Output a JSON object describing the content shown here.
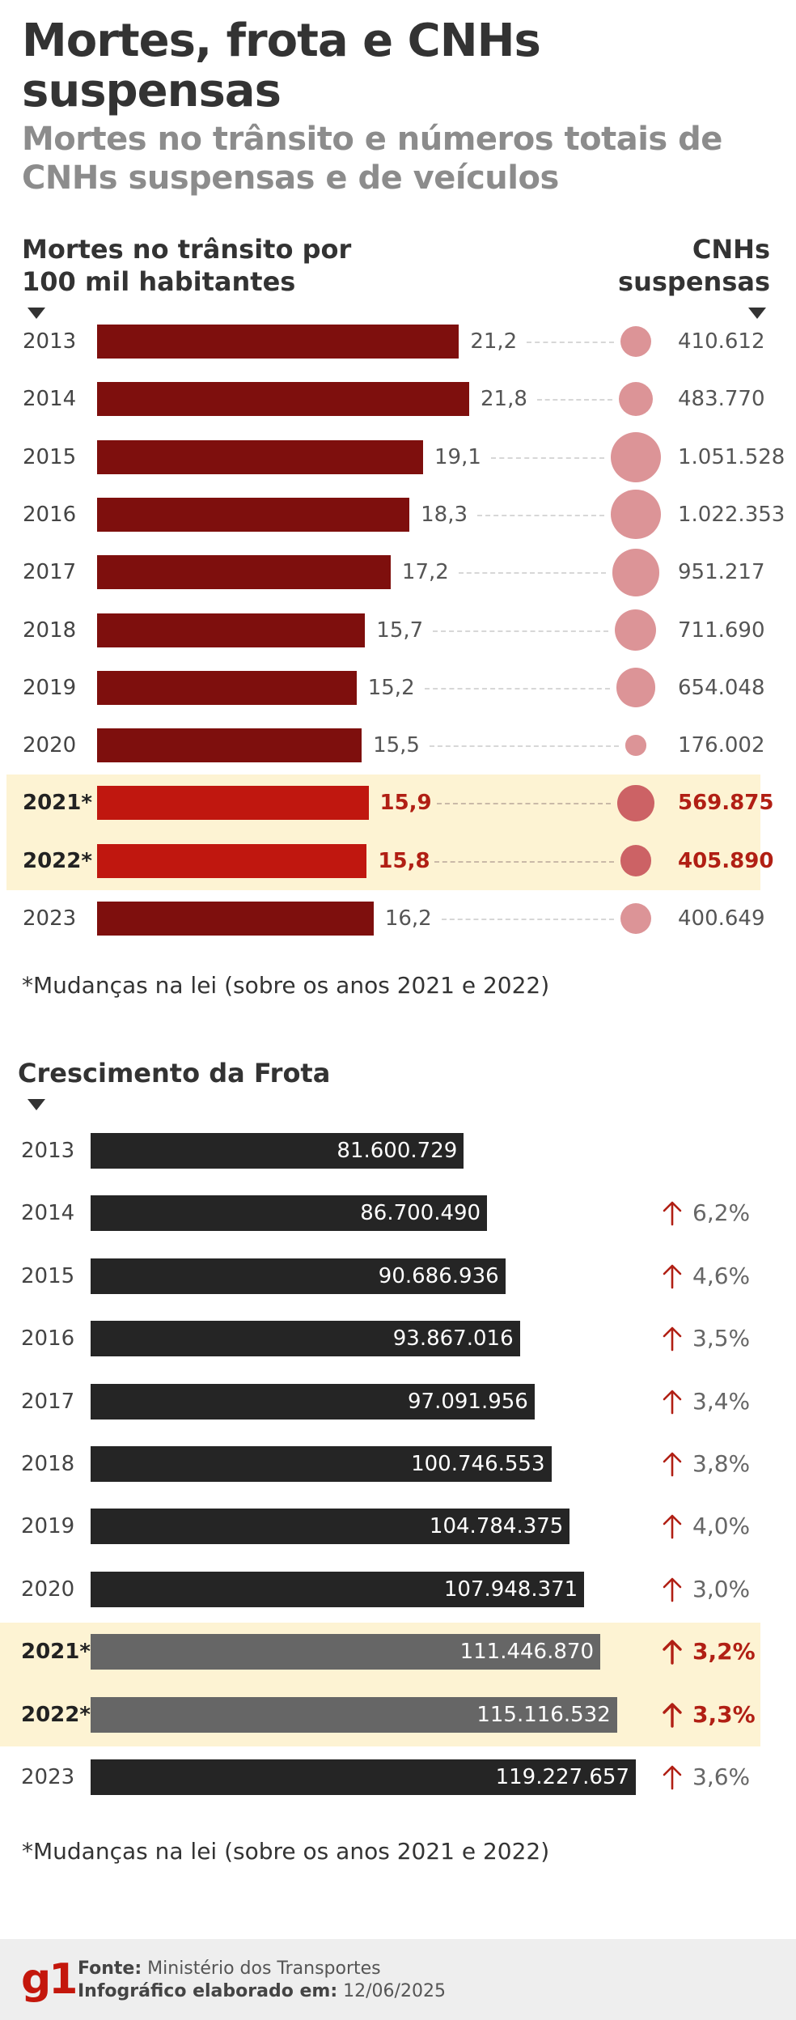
{
  "title": "Mortes, frota e CNHs suspensas",
  "subtitle": "Mortes no trânsito e números totais de CNHs suspensas e de veículos",
  "colors": {
    "death_bar": "#7e0f0d",
    "death_bar_highlight": "#c0170f",
    "bubble": "#dc9497",
    "bubble_highlight": "#cc6265",
    "fleet_bar": "#252525",
    "fleet_bar_highlight": "#666666",
    "highlight_band": "#fdf3d3",
    "accent_red": "#b11f14"
  },
  "chart_data": [
    {
      "type": "bar",
      "orientation": "horizontal",
      "left_label": "Mortes no trânsito por 100 mil habitantes",
      "right_label": "CNHs suspensas",
      "categories": [
        "2013",
        "2014",
        "2015",
        "2016",
        "2017",
        "2018",
        "2019",
        "2020",
        "2021*",
        "2022*",
        "2023"
      ],
      "highlighted": [
        false,
        false,
        false,
        false,
        false,
        false,
        false,
        false,
        true,
        true,
        false
      ],
      "series": [
        {
          "name": "Mortes no trânsito por 100 mil habitantes",
          "values": [
            21.2,
            21.8,
            19.1,
            18.3,
            17.2,
            15.7,
            15.2,
            15.5,
            15.9,
            15.8,
            16.2
          ],
          "labels": [
            "21,2",
            "21,8",
            "19,1",
            "18,3",
            "17,2",
            "15,7",
            "15,2",
            "15,5",
            "15,9",
            "15,8",
            "16,2"
          ]
        },
        {
          "name": "CNHs suspensas",
          "values": [
            410612,
            483770,
            1051528,
            1022353,
            951217,
            711690,
            654048,
            176002,
            569875,
            405890,
            400649
          ],
          "labels": [
            "410.612",
            "483.770",
            "1.051.528",
            "1.022.353",
            "951.217",
            "711.690",
            "654.048",
            "176.002",
            "569.875",
            "405.890",
            "400.649"
          ]
        }
      ],
      "note": "*Mudanças na lei (sobre os anos 2021 e 2022)"
    },
    {
      "type": "bar",
      "orientation": "horizontal",
      "title": "Crescimento da Frota",
      "categories": [
        "2013",
        "2014",
        "2015",
        "2016",
        "2017",
        "2018",
        "2019",
        "2020",
        "2021*",
        "2022*",
        "2023"
      ],
      "highlighted": [
        false,
        false,
        false,
        false,
        false,
        false,
        false,
        false,
        true,
        true,
        false
      ],
      "values": [
        81600729,
        86700490,
        90686936,
        93867016,
        97091956,
        100746553,
        104784375,
        107948371,
        111446870,
        115116532,
        119227657
      ],
      "labels": [
        "81.600.729",
        "86.700.490",
        "90.686.936",
        "93.867.016",
        "97.091.956",
        "100.746.553",
        "104.784.375",
        "107.948.371",
        "111.446.870",
        "115.116.532",
        "119.227.657"
      ],
      "growth": [
        "",
        "6,2%",
        "4,6%",
        "3,5%",
        "3,4%",
        "3,8%",
        "4,0%",
        "3,0%",
        "3,2%",
        "3,3%",
        "3,6%"
      ],
      "note": "*Mudanças na lei (sobre os anos 2021 e 2022)"
    }
  ],
  "footer": {
    "logo": "g1",
    "source_label": "Fonte:",
    "source_value": "Ministério dos Transportes",
    "made_label": "Infográfico elaborado em:",
    "made_value": "12/06/2025",
    "arrow_icon": "arrow-up-icon"
  }
}
